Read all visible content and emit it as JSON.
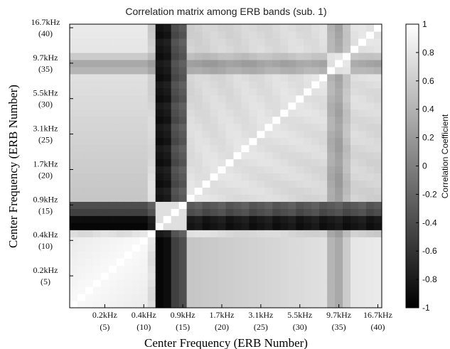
{
  "chart_data": {
    "type": "heatmap",
    "title": "Correlation matrix among ERB bands (sub. 1)",
    "xlabel": "Center Frequency (ERB Number)",
    "ylabel": "Center Frequency (ERB Number)",
    "x_ticks": [
      {
        "erb": 5,
        "freq": "0.2kHz",
        "num": "(5)"
      },
      {
        "erb": 10,
        "freq": "0.4kHz",
        "num": "(10)"
      },
      {
        "erb": 15,
        "freq": "0.9kHz",
        "num": "(15)"
      },
      {
        "erb": 20,
        "freq": "1.7kHz",
        "num": "(20)"
      },
      {
        "erb": 25,
        "freq": "3.1kHz",
        "num": "(25)"
      },
      {
        "erb": 30,
        "freq": "5.5kHz",
        "num": "(30)"
      },
      {
        "erb": 35,
        "freq": "9.7kHz",
        "num": "(35)"
      },
      {
        "erb": 40,
        "freq": "16.7kHz",
        "num": "(40)"
      }
    ],
    "y_ticks": [
      {
        "erb": 5,
        "freq": "0.2kHz",
        "num": "(5)"
      },
      {
        "erb": 10,
        "freq": "0.4kHz",
        "num": "(10)"
      },
      {
        "erb": 15,
        "freq": "0.9kHz",
        "num": "(15)"
      },
      {
        "erb": 20,
        "freq": "1.7kHz",
        "num": "(20)"
      },
      {
        "erb": 25,
        "freq": "3.1kHz",
        "num": "(25)"
      },
      {
        "erb": 30,
        "freq": "5.5kHz",
        "num": "(30)"
      },
      {
        "erb": 35,
        "freq": "9.7kHz",
        "num": "(35)"
      },
      {
        "erb": 40,
        "freq": "16.7kHz",
        "num": "(40)"
      }
    ],
    "xlim": [
      0.5,
      40.5
    ],
    "ylim": [
      0.5,
      40.5
    ],
    "n_bands": 40,
    "colormap": "gray",
    "colorbar": {
      "label": "Correlation Coefficient",
      "range": [
        -1,
        1
      ],
      "ticks": [
        "1",
        "0.8",
        "0.6",
        "0.4",
        "0.2",
        "0",
        "-0.2",
        "-0.4",
        "-0.6",
        "-0.8",
        "-1"
      ]
    },
    "structure": {
      "diagonal_value": 1.0,
      "low_band_block": {
        "from_erb": 1,
        "to_erb": 10,
        "within_value": 0.96
      },
      "dark_bands": [
        {
          "erb": 12,
          "value": -0.9
        },
        {
          "erb": 13,
          "value": -0.85
        },
        {
          "erb": 14,
          "value": -0.45
        },
        {
          "erb": 15,
          "value": -0.35
        }
      ],
      "dark_band_cross_value": 0.75,
      "high_band_correlation": {
        "from_erb": 16,
        "to_erb": 40,
        "base_value": 0.78
      },
      "highlighted_bands": [
        {
          "erb": 34,
          "offset": -0.35
        },
        {
          "erb": 35,
          "offset": -0.45
        },
        {
          "erb": 36,
          "offset": -0.2
        }
      ]
    }
  }
}
